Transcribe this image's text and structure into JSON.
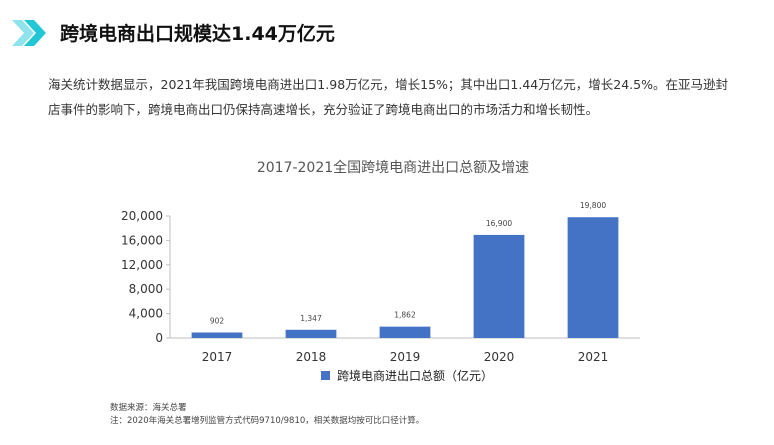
{
  "page": {
    "title": "跨境电商出口规模达1.44万亿元",
    "intro": "海关统计数据显示，2021年我国跨境电商进出口1.98万亿元，增长15%；其中出口1.44万亿元，增长24.5%。在亚马逊封店事件的影响下，跨境电商出口仍保持高速增长，充分验证了跨境电商出口的市场活力和增长韧性。",
    "source": "数据来源：海关总署",
    "note": "注：2020年海关总署增列监管方式代码9710/9810，相关数据均按可比口径计算。"
  },
  "colors": {
    "bar": "#4472C4",
    "accent_cyan": "#22C7D6",
    "accent_cyan_light": "#8FE3EC"
  },
  "chart_data": {
    "type": "bar",
    "title": "2017-2021全国跨境电商进出口总额及增速",
    "categories": [
      "2017",
      "2018",
      "2019",
      "2020",
      "2021"
    ],
    "series": [
      {
        "name": "跨境电商进出口总额（亿元）",
        "values": [
          902,
          1347,
          1862,
          16900,
          19800
        ],
        "labels": [
          "902",
          "1,347",
          "1,862",
          "16,900",
          "19,800"
        ]
      }
    ],
    "ylim": [
      0,
      20000
    ],
    "yticks": [
      "0",
      "4,000",
      "8,000",
      "12,000",
      "16,000",
      "20,000"
    ],
    "ytick_values": [
      0,
      4000,
      8000,
      12000,
      16000,
      20000
    ],
    "grid": false,
    "legend": "bottom"
  }
}
